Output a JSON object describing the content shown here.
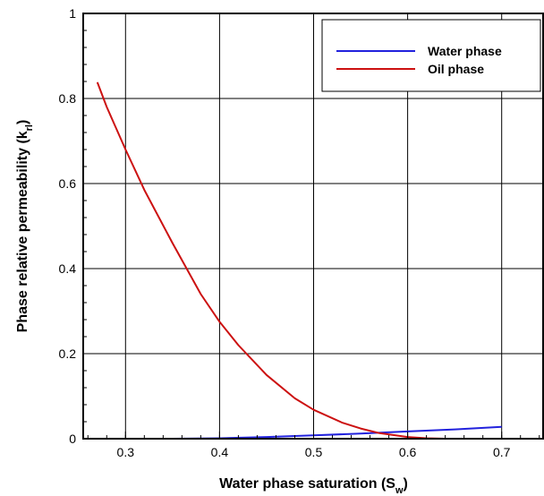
{
  "chart_data": {
    "type": "line",
    "title": "",
    "xlabel": {
      "main": "Water phase saturation (S",
      "sub": "w",
      "close": ")"
    },
    "ylabel": {
      "main": "Phase relative permeability (k",
      "sub": "rl",
      "close": ")"
    },
    "xlim": [
      0.255,
      0.745
    ],
    "ylim": [
      0,
      1
    ],
    "x_ticks": [
      0.3,
      0.4,
      0.5,
      0.6,
      0.7
    ],
    "y_ticks": [
      0,
      0.2,
      0.4,
      0.6,
      0.8,
      1
    ],
    "x_tick_labels": [
      "0.3",
      "0.4",
      "0.5",
      "0.6",
      "0.7"
    ],
    "y_tick_labels": [
      "0",
      "0.2",
      "0.4",
      "0.6",
      "0.8",
      "1"
    ],
    "grid": true,
    "legend_position": "top-right",
    "series": [
      {
        "name": "Water phase",
        "color": "#2222dd",
        "x": [
          0.27,
          0.3,
          0.35,
          0.4,
          0.45,
          0.5,
          0.55,
          0.6,
          0.65,
          0.7
        ],
        "y": [
          0.0,
          0.0,
          0.0,
          0.001,
          0.004,
          0.008,
          0.012,
          0.017,
          0.022,
          0.028
        ]
      },
      {
        "name": "Oil phase",
        "color": "#cc1111",
        "x": [
          0.27,
          0.28,
          0.3,
          0.32,
          0.35,
          0.38,
          0.4,
          0.42,
          0.45,
          0.48,
          0.5,
          0.53,
          0.55,
          0.57,
          0.6,
          0.62,
          0.64,
          0.65
        ],
        "y": [
          0.838,
          0.78,
          0.68,
          0.585,
          0.46,
          0.34,
          0.275,
          0.22,
          0.15,
          0.095,
          0.068,
          0.038,
          0.024,
          0.013,
          0.004,
          0.001,
          0.0,
          0.0
        ]
      }
    ]
  }
}
